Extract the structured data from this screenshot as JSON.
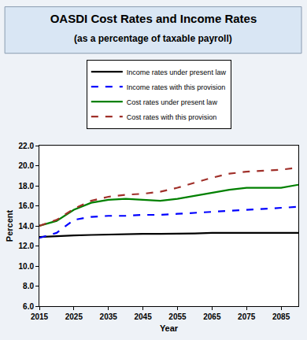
{
  "chart_data": {
    "type": "line",
    "title": "OASDI Cost Rates and Income Rates",
    "subtitle": "(as a percentage of taxable payroll)",
    "x_label": "Year",
    "y_label": "Percent",
    "x": [
      2015,
      2020,
      2025,
      2030,
      2035,
      2040,
      2045,
      2050,
      2055,
      2060,
      2065,
      2070,
      2075,
      2080,
      2085,
      2090
    ],
    "series": [
      {
        "name": "Income rates under present law",
        "color": "#000000",
        "line_style": "solid",
        "values": [
          12.9,
          13.0,
          13.05,
          13.1,
          13.15,
          13.2,
          13.2,
          13.2,
          13.2,
          13.25,
          13.3,
          13.3,
          13.3,
          13.3,
          13.3,
          13.3
        ]
      },
      {
        "name": "Income rates with this provision",
        "color": "#0000ff",
        "line_style": "dash",
        "values": [
          12.8,
          13.3,
          14.6,
          14.9,
          15.0,
          15.0,
          15.1,
          15.1,
          15.2,
          15.3,
          15.4,
          15.5,
          15.6,
          15.7,
          15.8,
          15.9
        ]
      },
      {
        "name": "Cost rates under present law",
        "color": "#008000",
        "line_style": "solid",
        "values": [
          14.0,
          14.5,
          15.6,
          16.3,
          16.6,
          16.7,
          16.6,
          16.5,
          16.7,
          17.0,
          17.3,
          17.6,
          17.8,
          17.8,
          17.8,
          18.1
        ]
      },
      {
        "name": "Cost rates with this provision",
        "color": "#a0302a",
        "line_style": "dash",
        "values": [
          14.0,
          14.6,
          15.7,
          16.5,
          16.9,
          17.1,
          17.2,
          17.4,
          17.8,
          18.3,
          18.8,
          19.2,
          19.4,
          19.5,
          19.6,
          19.8
        ]
      }
    ],
    "xlim": [
      2015,
      2090
    ],
    "xticks": [
      2015,
      2025,
      2035,
      2045,
      2055,
      2065,
      2075,
      2085
    ],
    "ylim": [
      6,
      22
    ],
    "yticks": [
      {
        "value": 6,
        "label": "6.0"
      },
      {
        "value": 8,
        "label": "8.0"
      },
      {
        "value": 10,
        "label": "10.0"
      },
      {
        "value": 12,
        "label": "12.0"
      },
      {
        "value": 14,
        "label": "14.0"
      },
      {
        "value": 16,
        "label": "16.0"
      },
      {
        "value": 18,
        "label": "18.0"
      },
      {
        "value": 20,
        "label": "20.0"
      },
      {
        "value": 22,
        "label": "22.0"
      }
    ],
    "grid": false,
    "legend": "top"
  }
}
